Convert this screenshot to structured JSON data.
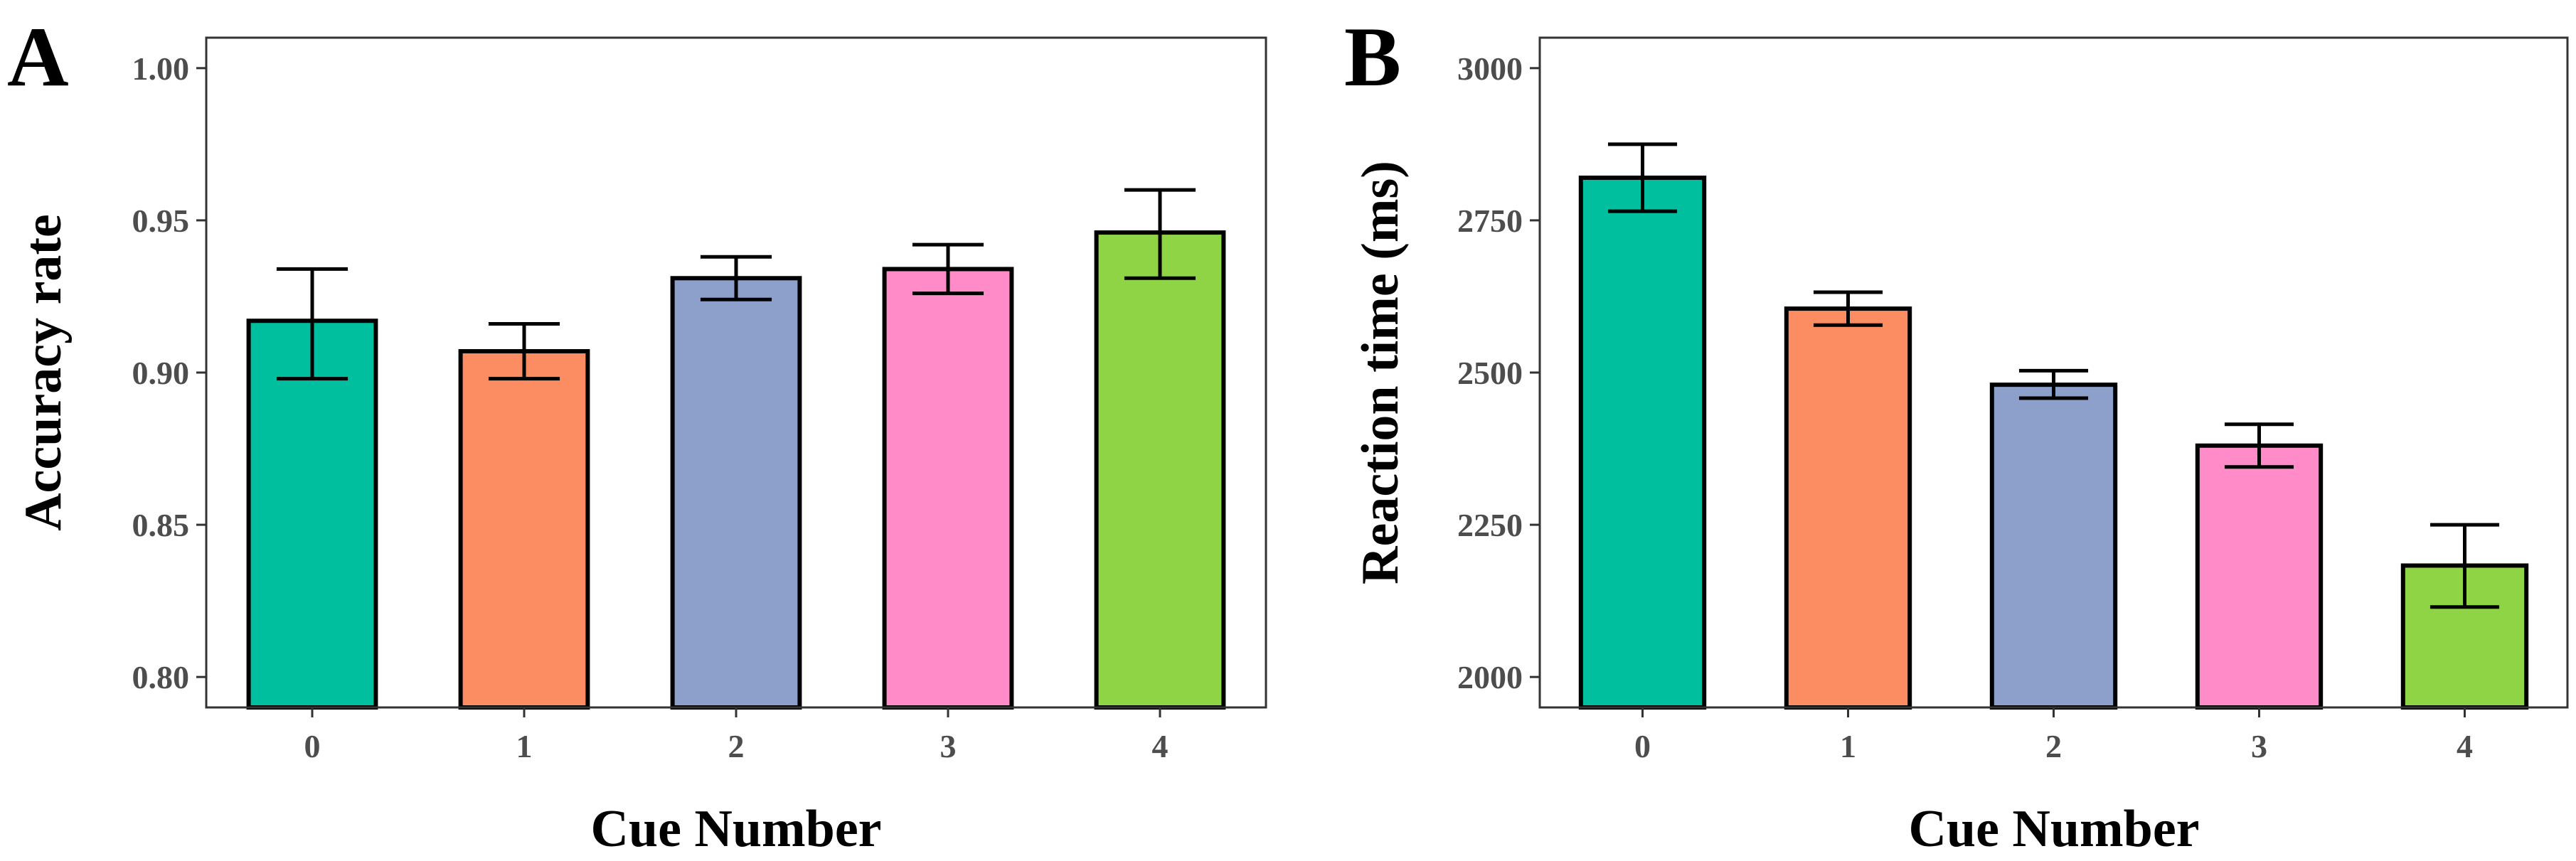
{
  "chart_data": [
    {
      "type": "bar",
      "panel": "A",
      "categories": [
        "0",
        "1",
        "2",
        "3",
        "4"
      ],
      "values": [
        0.917,
        0.907,
        0.931,
        0.934,
        0.946
      ],
      "error_low": [
        0.898,
        0.898,
        0.924,
        0.926,
        0.931
      ],
      "error_high": [
        0.934,
        0.916,
        0.938,
        0.942,
        0.96
      ],
      "colors": [
        "#00bf9f",
        "#fc8d62",
        "#8da0cb",
        "#ff8cc8",
        "#8fd444"
      ],
      "xlabel": "Cue Number",
      "ylabel": "Accuracy rate",
      "ylim": [
        0.79,
        1.01
      ],
      "yticks": [
        0.8,
        0.85,
        0.9,
        0.95,
        1.0
      ],
      "ytick_labels": [
        "0.80",
        "0.85",
        "0.90",
        "0.95",
        "1.00"
      ]
    },
    {
      "type": "bar",
      "panel": "B",
      "categories": [
        "0",
        "1",
        "2",
        "3",
        "4"
      ],
      "values": [
        2820,
        2605,
        2480,
        2380,
        2183
      ],
      "error_low": [
        2765,
        2578,
        2458,
        2345,
        2115
      ],
      "error_high": [
        2875,
        2632,
        2503,
        2415,
        2250
      ],
      "colors": [
        "#00bf9f",
        "#fc8d62",
        "#8da0cb",
        "#ff8cc8",
        "#8fd444"
      ],
      "xlabel": "Cue Number",
      "ylabel": "Reaction time  (ms)",
      "ylim": [
        1950,
        3050
      ],
      "yticks": [
        2000,
        2250,
        2500,
        2750,
        3000
      ],
      "ytick_labels": [
        "2000",
        "2250",
        "2500",
        "2750",
        "3000"
      ]
    }
  ]
}
